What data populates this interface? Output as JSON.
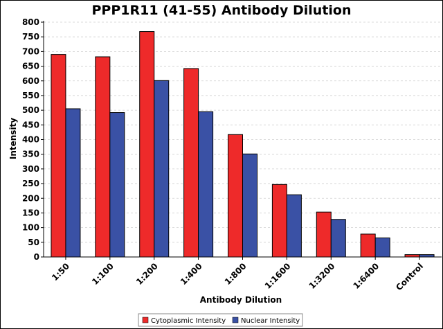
{
  "chart_data": {
    "type": "bar",
    "title": "PPP1R11 (41-55) Antibody Dilution",
    "xlabel": "Antibody Dilution",
    "ylabel": "Intensity",
    "categories": [
      "1:50",
      "1:100",
      "1:200",
      "1:400",
      "1:800",
      "1:1600",
      "1:3200",
      "1:6400",
      "Control"
    ],
    "series": [
      {
        "name": "Cytoplasmic Intensity",
        "color": "#ee2a2a",
        "values": [
          690,
          682,
          768,
          642,
          417,
          247,
          153,
          78,
          8
        ]
      },
      {
        "name": "Nuclear Intensity",
        "color": "#3a51a5",
        "values": [
          505,
          492,
          601,
          495,
          351,
          212,
          128,
          65,
          8
        ]
      }
    ],
    "ylim": [
      0,
      800
    ],
    "yticks": [
      0,
      50,
      100,
      150,
      200,
      250,
      300,
      350,
      400,
      450,
      500,
      550,
      600,
      650,
      700,
      750,
      800
    ],
    "grid": true,
    "legend_position": "bottom"
  }
}
